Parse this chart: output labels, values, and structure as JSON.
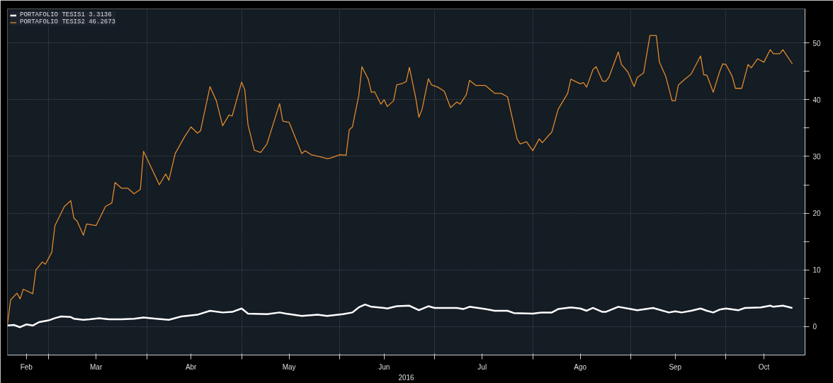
{
  "chart_data": {
    "type": "line",
    "xlabel": "2016",
    "legend": "top left",
    "grid": true,
    "xlim": [
      "2016-02-17",
      "2016-10-26"
    ],
    "ylim": [
      -5,
      56
    ],
    "xticks": [
      {
        "value": "2016-02-23",
        "label": "Feb"
      },
      {
        "value": "2016-03-01",
        "label": null
      },
      {
        "value": "2016-03-16",
        "label": "Mar"
      },
      {
        "value": "2016-04-01",
        "label": null
      },
      {
        "value": "2016-04-15",
        "label": "Abr"
      },
      {
        "value": "2016-05-01",
        "label": null
      },
      {
        "value": "2016-05-16",
        "label": "May"
      },
      {
        "value": "2016-06-01",
        "label": null
      },
      {
        "value": "2016-06-15",
        "label": "Jun"
      },
      {
        "value": "2016-07-01",
        "label": null
      },
      {
        "value": "2016-07-16",
        "label": "Jul"
      },
      {
        "value": "2016-08-01",
        "label": null
      },
      {
        "value": "2016-08-16",
        "label": "Ago"
      },
      {
        "value": "2016-09-01",
        "label": null
      },
      {
        "value": "2016-09-15",
        "label": "Sep"
      },
      {
        "value": "2016-10-01",
        "label": null
      },
      {
        "value": "2016-10-13",
        "label": "Oct"
      }
    ],
    "yticks": [
      0,
      {
        "value": 5,
        "label": null
      },
      10,
      {
        "value": 15,
        "label": null
      },
      20,
      {
        "value": 25,
        "label": null
      },
      30,
      {
        "value": 35,
        "label": null
      },
      40,
      {
        "value": 45,
        "label": null
      },
      50
    ],
    "series": [
      {
        "name": "PORTAFOLIO TESIS1 3.3136",
        "color": "#ffffff",
        "x": [
          "2016-02-17",
          "2016-02-19",
          "2016-02-21",
          "2016-02-23",
          "2016-02-25",
          "2016-02-27",
          "2016-03-01",
          "2016-03-03",
          "2016-03-05",
          "2016-03-08",
          "2016-03-09",
          "2016-03-12",
          "2016-03-14",
          "2016-03-17",
          "2016-03-20",
          "2016-03-24",
          "2016-03-28",
          "2016-03-31",
          "2016-04-04",
          "2016-04-08",
          "2016-04-12",
          "2016-04-17",
          "2016-04-21",
          "2016-04-25",
          "2016-04-28",
          "2016-05-01",
          "2016-05-03",
          "2016-05-09",
          "2016-05-13",
          "2016-05-15",
          "2016-05-20",
          "2016-05-25",
          "2016-05-28",
          "2016-06-02",
          "2016-06-05",
          "2016-06-07",
          "2016-06-09",
          "2016-06-11",
          "2016-06-15",
          "2016-06-16",
          "2016-06-19",
          "2016-06-23",
          "2016-06-26",
          "2016-06-29",
          "2016-07-01",
          "2016-07-08",
          "2016-07-10",
          "2016-07-12",
          "2016-07-17",
          "2016-07-20",
          "2016-07-24",
          "2016-07-26",
          "2016-08-01",
          "2016-08-04",
          "2016-08-07",
          "2016-08-09",
          "2016-08-13",
          "2016-08-16",
          "2016-08-18",
          "2016-08-20",
          "2016-08-23",
          "2016-08-24",
          "2016-08-28",
          "2016-08-31",
          "2016-09-03",
          "2016-09-08",
          "2016-09-13",
          "2016-09-15",
          "2016-09-17",
          "2016-09-20",
          "2016-09-23",
          "2016-09-25",
          "2016-09-27",
          "2016-09-29",
          "2016-10-01",
          "2016-10-05",
          "2016-10-07",
          "2016-10-12",
          "2016-10-15",
          "2016-10-16",
          "2016-10-19",
          "2016-10-22"
        ],
        "values": [
          0.2,
          0.3,
          -0.1,
          0.4,
          0.2,
          0.8,
          1.1,
          1.5,
          1.8,
          1.7,
          1.4,
          1.2,
          1.3,
          1.5,
          1.3,
          1.3,
          1.4,
          1.6,
          1.4,
          1.2,
          1.8,
          2.1,
          2.8,
          2.5,
          2.6,
          3.2,
          2.3,
          2.2,
          2.5,
          2.3,
          1.9,
          2.1,
          1.9,
          2.2,
          2.5,
          3.4,
          3.9,
          3.5,
          3.3,
          3.2,
          3.6,
          3.7,
          2.9,
          3.6,
          3.3,
          3.3,
          3.1,
          3.5,
          3.1,
          2.8,
          2.8,
          2.4,
          2.3,
          2.5,
          2.5,
          3.1,
          3.4,
          3.2,
          2.8,
          3.3,
          2.6,
          2.6,
          3.5,
          3.2,
          2.9,
          3.3,
          2.5,
          2.7,
          2.5,
          2.8,
          3.2,
          2.8,
          2.5,
          3.0,
          3.2,
          2.9,
          3.3,
          3.4,
          3.7,
          3.5,
          3.7,
          3.3
        ]
      },
      {
        "name": "PORTAFOLIO TESIS2 46.2673",
        "color": "#e08a2c",
        "x": [
          "2016-02-17",
          "2016-02-18",
          "2016-02-20",
          "2016-02-21",
          "2016-02-22",
          "2016-02-25",
          "2016-02-26",
          "2016-02-28",
          "2016-02-29",
          "2016-03-02",
          "2016-03-03",
          "2016-03-06",
          "2016-03-08",
          "2016-03-09",
          "2016-03-10",
          "2016-03-12",
          "2016-03-13",
          "2016-03-16",
          "2016-03-19",
          "2016-03-21",
          "2016-03-22",
          "2016-03-24",
          "2016-03-26",
          "2016-03-28",
          "2016-03-30",
          "2016-03-31",
          "2016-04-05",
          "2016-04-07",
          "2016-04-08",
          "2016-04-10",
          "2016-04-13",
          "2016-04-15",
          "2016-04-17",
          "2016-04-18",
          "2016-04-21",
          "2016-04-23",
          "2016-04-25",
          "2016-04-27",
          "2016-04-28",
          "2016-05-01",
          "2016-05-02",
          "2016-05-03",
          "2016-05-05",
          "2016-05-07",
          "2016-05-09",
          "2016-05-13",
          "2016-05-14",
          "2016-05-16",
          "2016-05-20",
          "2016-05-21",
          "2016-05-23",
          "2016-05-26",
          "2016-05-28",
          "2016-05-29",
          "2016-06-01",
          "2016-06-03",
          "2016-06-04",
          "2016-06-05",
          "2016-06-07",
          "2016-06-08",
          "2016-06-10",
          "2016-06-11",
          "2016-06-12",
          "2016-06-14",
          "2016-06-15",
          "2016-06-16",
          "2016-06-18",
          "2016-06-19",
          "2016-06-21",
          "2016-06-22",
          "2016-06-23",
          "2016-06-25",
          "2016-06-26",
          "2016-06-27",
          "2016-06-29",
          "2016-06-30",
          "2016-07-02",
          "2016-07-04",
          "2016-07-06",
          "2016-07-08",
          "2016-07-09",
          "2016-07-11",
          "2016-07-12",
          "2016-07-14",
          "2016-07-17",
          "2016-07-20",
          "2016-07-22",
          "2016-07-24",
          "2016-07-27",
          "2016-07-28",
          "2016-07-30",
          "2016-08-01",
          "2016-08-03",
          "2016-08-04",
          "2016-08-06",
          "2016-08-07",
          "2016-08-09",
          "2016-08-12",
          "2016-08-13",
          "2016-08-16",
          "2016-08-17",
          "2016-08-18",
          "2016-08-20",
          "2016-08-21",
          "2016-08-23",
          "2016-08-24",
          "2016-08-25",
          "2016-08-28",
          "2016-08-29",
          "2016-08-31",
          "2016-09-02",
          "2016-09-03",
          "2016-09-05",
          "2016-09-07",
          "2016-09-09",
          "2016-09-10",
          "2016-09-12",
          "2016-09-14",
          "2016-09-15",
          "2016-09-16",
          "2016-09-18",
          "2016-09-20",
          "2016-09-23",
          "2016-09-24",
          "2016-09-25",
          "2016-09-27",
          "2016-09-29",
          "2016-09-30",
          "2016-10-01",
          "2016-10-03",
          "2016-10-04",
          "2016-10-06",
          "2016-10-08",
          "2016-10-09",
          "2016-10-11",
          "2016-10-13",
          "2016-10-15",
          "2016-10-16",
          "2016-10-18",
          "2016-10-19",
          "2016-10-22"
        ],
        "values": [
          0.4,
          4.7,
          5.9,
          4.9,
          6.6,
          5.8,
          10.0,
          11.4,
          11.0,
          13.1,
          17.8,
          21.2,
          22.2,
          19.1,
          18.6,
          16.1,
          18.1,
          17.8,
          21.2,
          21.8,
          25.4,
          24.4,
          24.4,
          23.4,
          24.2,
          30.9,
          25.0,
          26.9,
          25.8,
          30.5,
          33.5,
          35.2,
          34.1,
          34.5,
          42.3,
          39.8,
          35.4,
          37.3,
          37.1,
          43.1,
          41.7,
          35.6,
          31.1,
          30.7,
          32.2,
          39.3,
          36.2,
          36.0,
          30.5,
          31.0,
          30.3,
          29.9,
          29.6,
          29.7,
          30.3,
          30.2,
          34.7,
          35.2,
          40.7,
          45.8,
          43.6,
          41.3,
          41.4,
          39.2,
          40.0,
          38.8,
          39.8,
          42.6,
          42.9,
          43.2,
          45.7,
          40.3,
          36.9,
          38.3,
          43.7,
          42.6,
          42.2,
          41.5,
          38.6,
          39.6,
          39.2,
          40.9,
          43.4,
          42.5,
          42.5,
          41.1,
          41.1,
          40.5,
          33.1,
          32.2,
          32.6,
          31.0,
          33.1,
          32.4,
          33.7,
          34.3,
          38.3,
          41.1,
          43.6,
          42.8,
          43.0,
          42.2,
          45.3,
          45.8,
          43.3,
          43.2,
          43.9,
          48.4,
          46.2,
          44.9,
          42.3,
          43.9,
          44.7,
          51.3,
          51.3,
          46.6,
          44.1,
          39.8,
          39.8,
          42.6,
          43.6,
          44.5,
          47.7,
          44.4,
          44.3,
          41.3,
          44.9,
          46.3,
          46.2,
          44.1,
          42.0,
          42.0,
          46.2,
          45.6,
          47.2,
          46.6,
          48.8,
          48.1,
          48.1,
          48.8,
          46.3
        ]
      }
    ]
  }
}
